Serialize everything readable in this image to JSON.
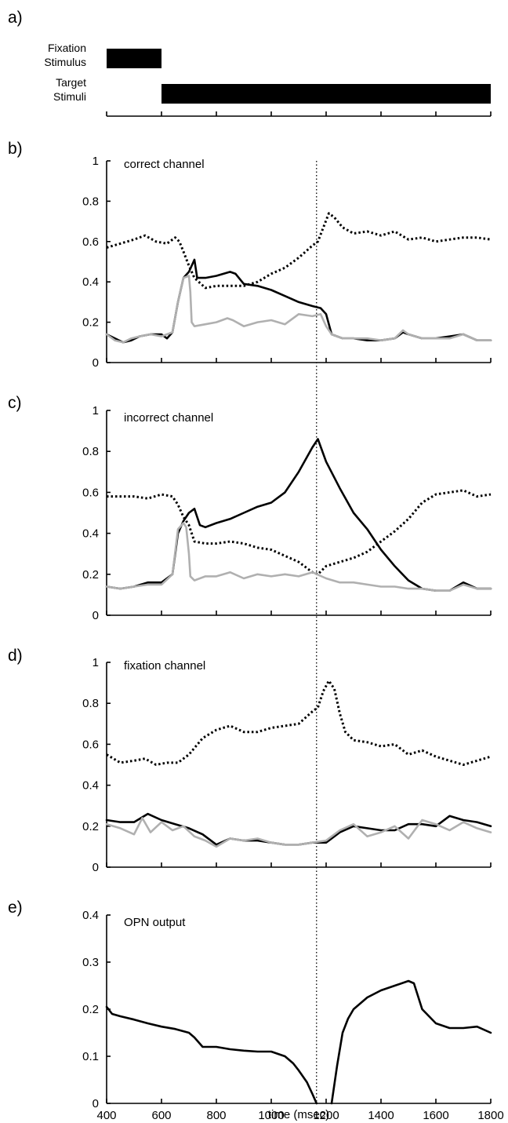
{
  "panel_labels": [
    "a)",
    "b)",
    "c)",
    "d)",
    "e)"
  ],
  "x_axis": {
    "label": "time (msec)",
    "ticks": [
      400,
      600,
      800,
      1000,
      1200,
      1400,
      1600,
      1800
    ],
    "range": [
      400,
      1800
    ]
  },
  "event_time": 1165,
  "stimulus_timeline": {
    "fixation": {
      "label_line1": "Fixation",
      "label_line2": "Stimulus",
      "start": 400,
      "end": 600
    },
    "target": {
      "label_line1": "Target",
      "label_line2": "Stimuli",
      "start": 600,
      "end": 1800
    }
  },
  "colors": {
    "black": "#000000",
    "gray": "#b0b0b0"
  },
  "chart_data": [
    {
      "type": "line",
      "panel": "b)",
      "title": "correct channel",
      "ylim": [
        0,
        1
      ],
      "yticks": [
        "0",
        "0.2",
        "0.4",
        "0.6",
        "0.8",
        "1"
      ],
      "series": [
        {
          "style": "dotted",
          "color": "#000000",
          "x": [
            400,
            450,
            500,
            540,
            580,
            620,
            650,
            665,
            680,
            700,
            720,
            760,
            800,
            900,
            950,
            1000,
            1050,
            1100,
            1150,
            1170,
            1190,
            1210,
            1230,
            1260,
            1300,
            1350,
            1400,
            1450,
            1500,
            1550,
            1600,
            1650,
            1700,
            1750,
            1800
          ],
          "y": [
            0.57,
            0.59,
            0.61,
            0.63,
            0.6,
            0.59,
            0.62,
            0.6,
            0.55,
            0.48,
            0.42,
            0.37,
            0.38,
            0.38,
            0.4,
            0.44,
            0.47,
            0.52,
            0.58,
            0.6,
            0.67,
            0.74,
            0.72,
            0.67,
            0.64,
            0.65,
            0.63,
            0.65,
            0.61,
            0.62,
            0.6,
            0.61,
            0.62,
            0.62,
            0.61
          ]
        },
        {
          "style": "solid",
          "color": "#000000",
          "x": [
            400,
            430,
            460,
            490,
            520,
            560,
            600,
            620,
            640,
            660,
            680,
            700,
            720,
            730,
            760,
            800,
            850,
            870,
            900,
            950,
            1000,
            1050,
            1100,
            1150,
            1180,
            1200,
            1220,
            1260,
            1300,
            1350,
            1400,
            1450,
            1480,
            1500,
            1550,
            1600,
            1650,
            1700,
            1750,
            1800
          ],
          "y": [
            0.14,
            0.12,
            0.1,
            0.11,
            0.13,
            0.14,
            0.14,
            0.12,
            0.15,
            0.3,
            0.42,
            0.45,
            0.51,
            0.42,
            0.42,
            0.43,
            0.45,
            0.44,
            0.39,
            0.38,
            0.36,
            0.33,
            0.3,
            0.28,
            0.27,
            0.24,
            0.14,
            0.12,
            0.12,
            0.11,
            0.11,
            0.12,
            0.15,
            0.14,
            0.12,
            0.12,
            0.13,
            0.14,
            0.11,
            0.11
          ]
        },
        {
          "style": "solid",
          "color": "#b0b0b0",
          "x": [
            400,
            430,
            460,
            490,
            520,
            560,
            600,
            640,
            660,
            680,
            700,
            705,
            710,
            720,
            760,
            800,
            840,
            860,
            900,
            950,
            1000,
            1050,
            1100,
            1150,
            1180,
            1200,
            1220,
            1260,
            1300,
            1350,
            1400,
            1450,
            1480,
            1500,
            1550,
            1600,
            1650,
            1700,
            1750,
            1800
          ],
          "y": [
            0.14,
            0.11,
            0.1,
            0.12,
            0.13,
            0.14,
            0.13,
            0.15,
            0.3,
            0.42,
            0.43,
            0.35,
            0.2,
            0.18,
            0.19,
            0.2,
            0.22,
            0.21,
            0.18,
            0.2,
            0.21,
            0.19,
            0.24,
            0.23,
            0.24,
            0.18,
            0.14,
            0.12,
            0.12,
            0.12,
            0.11,
            0.12,
            0.16,
            0.14,
            0.12,
            0.12,
            0.12,
            0.14,
            0.11,
            0.11
          ]
        }
      ]
    },
    {
      "type": "line",
      "panel": "c)",
      "title": "incorrect channel",
      "ylim": [
        0,
        1
      ],
      "yticks": [
        "0",
        "0.2",
        "0.4",
        "0.6",
        "0.8",
        "1"
      ],
      "series": [
        {
          "style": "dotted",
          "color": "#000000",
          "x": [
            400,
            450,
            500,
            550,
            600,
            640,
            660,
            680,
            700,
            720,
            760,
            800,
            850,
            900,
            950,
            1000,
            1050,
            1100,
            1150,
            1170,
            1200,
            1250,
            1300,
            1350,
            1400,
            1450,
            1500,
            1550,
            1600,
            1650,
            1700,
            1750,
            1800
          ],
          "y": [
            0.58,
            0.58,
            0.58,
            0.57,
            0.59,
            0.58,
            0.54,
            0.48,
            0.44,
            0.36,
            0.35,
            0.35,
            0.36,
            0.35,
            0.33,
            0.32,
            0.29,
            0.26,
            0.21,
            0.2,
            0.24,
            0.26,
            0.28,
            0.31,
            0.36,
            0.41,
            0.47,
            0.55,
            0.59,
            0.6,
            0.61,
            0.58,
            0.59
          ]
        },
        {
          "style": "solid",
          "color": "#000000",
          "x": [
            400,
            450,
            500,
            550,
            600,
            640,
            660,
            680,
            700,
            720,
            740,
            760,
            800,
            850,
            900,
            950,
            1000,
            1050,
            1100,
            1150,
            1170,
            1200,
            1250,
            1300,
            1350,
            1400,
            1450,
            1500,
            1550,
            1600,
            1650,
            1700,
            1750,
            1800
          ],
          "y": [
            0.14,
            0.13,
            0.14,
            0.16,
            0.16,
            0.2,
            0.4,
            0.46,
            0.5,
            0.52,
            0.44,
            0.43,
            0.45,
            0.47,
            0.5,
            0.53,
            0.55,
            0.6,
            0.7,
            0.82,
            0.86,
            0.75,
            0.62,
            0.5,
            0.42,
            0.32,
            0.24,
            0.17,
            0.13,
            0.12,
            0.12,
            0.16,
            0.13,
            0.13
          ]
        },
        {
          "style": "solid",
          "color": "#b0b0b0",
          "x": [
            400,
            450,
            500,
            550,
            600,
            640,
            660,
            680,
            690,
            700,
            705,
            720,
            760,
            800,
            850,
            900,
            950,
            1000,
            1050,
            1100,
            1150,
            1200,
            1250,
            1300,
            1350,
            1400,
            1450,
            1500,
            1550,
            1600,
            1650,
            1700,
            1750,
            1800
          ],
          "y": [
            0.14,
            0.13,
            0.14,
            0.15,
            0.15,
            0.2,
            0.42,
            0.45,
            0.43,
            0.3,
            0.19,
            0.17,
            0.19,
            0.19,
            0.21,
            0.18,
            0.2,
            0.19,
            0.2,
            0.19,
            0.21,
            0.18,
            0.16,
            0.16,
            0.15,
            0.14,
            0.14,
            0.13,
            0.13,
            0.12,
            0.12,
            0.15,
            0.13,
            0.13
          ]
        }
      ]
    },
    {
      "type": "line",
      "panel": "d)",
      "title": "fixation channel",
      "ylim": [
        0,
        1
      ],
      "yticks": [
        "0",
        "0.2",
        "0.4",
        "0.6",
        "0.8",
        "1"
      ],
      "series": [
        {
          "style": "dotted",
          "color": "#000000",
          "x": [
            400,
            450,
            500,
            540,
            580,
            620,
            660,
            700,
            750,
            800,
            850,
            900,
            950,
            1000,
            1050,
            1100,
            1150,
            1170,
            1190,
            1210,
            1230,
            1250,
            1270,
            1300,
            1350,
            1400,
            1450,
            1500,
            1550,
            1600,
            1650,
            1700,
            1750,
            1800
          ],
          "y": [
            0.55,
            0.51,
            0.52,
            0.53,
            0.5,
            0.51,
            0.51,
            0.55,
            0.63,
            0.67,
            0.69,
            0.66,
            0.66,
            0.68,
            0.69,
            0.7,
            0.76,
            0.78,
            0.86,
            0.91,
            0.87,
            0.75,
            0.66,
            0.62,
            0.61,
            0.59,
            0.6,
            0.55,
            0.57,
            0.54,
            0.52,
            0.5,
            0.52,
            0.54
          ]
        },
        {
          "style": "solid",
          "color": "#000000",
          "x": [
            400,
            450,
            500,
            550,
            600,
            650,
            700,
            750,
            800,
            850,
            900,
            950,
            1000,
            1050,
            1100,
            1150,
            1200,
            1250,
            1300,
            1350,
            1400,
            1450,
            1500,
            1550,
            1600,
            1650,
            1700,
            1750,
            1800
          ],
          "y": [
            0.23,
            0.22,
            0.22,
            0.26,
            0.23,
            0.21,
            0.19,
            0.16,
            0.11,
            0.14,
            0.13,
            0.13,
            0.12,
            0.11,
            0.11,
            0.12,
            0.12,
            0.17,
            0.2,
            0.19,
            0.18,
            0.18,
            0.21,
            0.21,
            0.2,
            0.25,
            0.23,
            0.22,
            0.2
          ]
        },
        {
          "style": "solid",
          "color": "#b0b0b0",
          "x": [
            400,
            450,
            500,
            530,
            560,
            600,
            640,
            680,
            720,
            760,
            800,
            850,
            900,
            950,
            1000,
            1050,
            1100,
            1150,
            1200,
            1250,
            1300,
            1350,
            1400,
            1450,
            1500,
            1550,
            1600,
            1650,
            1700,
            1750,
            1800
          ],
          "y": [
            0.21,
            0.19,
            0.16,
            0.24,
            0.17,
            0.22,
            0.18,
            0.2,
            0.15,
            0.13,
            0.1,
            0.14,
            0.13,
            0.14,
            0.12,
            0.11,
            0.11,
            0.12,
            0.13,
            0.18,
            0.21,
            0.15,
            0.17,
            0.2,
            0.14,
            0.23,
            0.21,
            0.18,
            0.22,
            0.19,
            0.17
          ]
        }
      ]
    },
    {
      "type": "line",
      "panel": "e)",
      "title": "OPN output",
      "ylim": [
        0,
        0.4
      ],
      "yticks": [
        "0",
        "0.1",
        "0.2",
        "0.3",
        "0.4"
      ],
      "series": [
        {
          "style": "solid",
          "color": "#000000",
          "x": [
            400,
            420,
            450,
            500,
            550,
            600,
            650,
            700,
            720,
            750,
            800,
            850,
            900,
            950,
            1000,
            1050,
            1080,
            1100,
            1130,
            1150,
            1165
          ],
          "y": [
            0.205,
            0.19,
            0.185,
            0.178,
            0.17,
            0.163,
            0.158,
            0.15,
            0.14,
            0.12,
            0.12,
            0.115,
            0.112,
            0.11,
            0.11,
            0.1,
            0.085,
            0.07,
            0.045,
            0.02,
            0.0
          ]
        },
        {
          "style": "solid",
          "color": "#000000",
          "x": [
            1220,
            1240,
            1260,
            1280,
            1300,
            1350,
            1400,
            1450,
            1500,
            1520,
            1550,
            1600,
            1650,
            1700,
            1750,
            1800
          ],
          "y": [
            0.0,
            0.08,
            0.15,
            0.18,
            0.2,
            0.225,
            0.24,
            0.25,
            0.26,
            0.255,
            0.2,
            0.17,
            0.16,
            0.16,
            0.163,
            0.15
          ]
        }
      ]
    }
  ]
}
